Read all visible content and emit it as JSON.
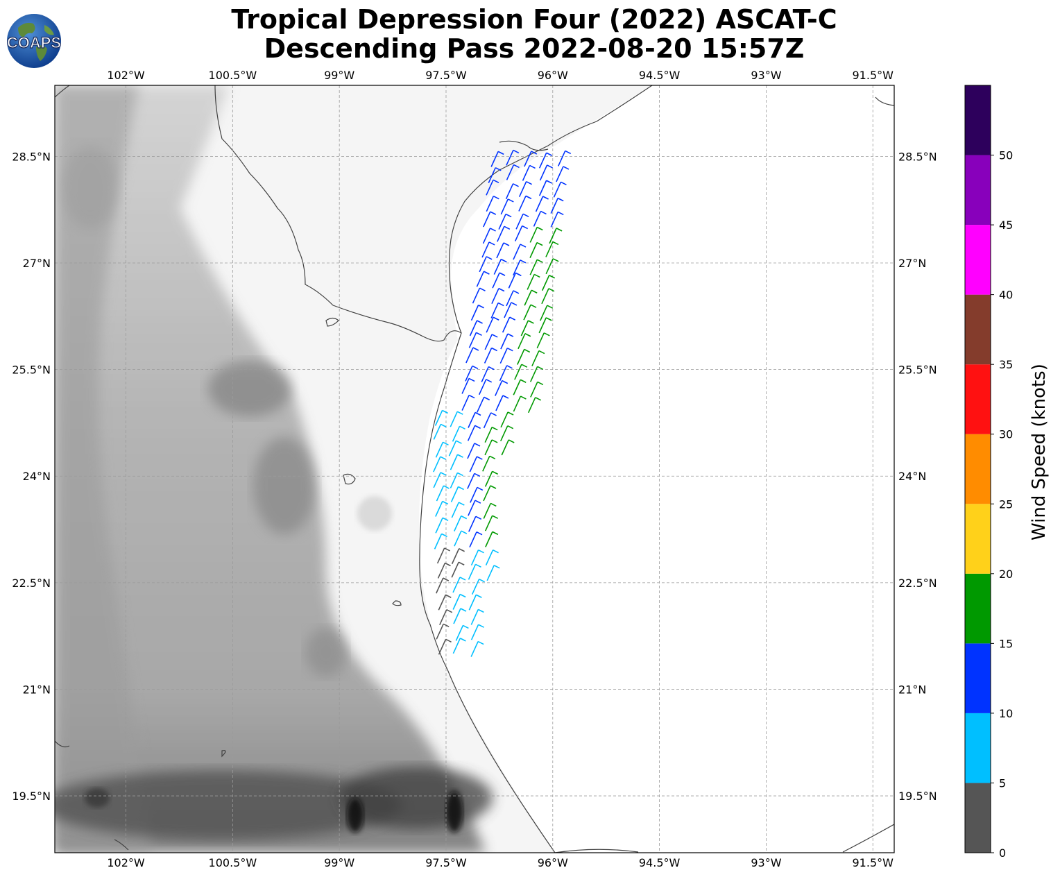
{
  "title": {
    "line1": "Tropical Depression Four (2022) ASCAT-C",
    "line2": "Descending Pass 2022-08-20 15:57Z"
  },
  "logo": {
    "text": "COAPS",
    "icon": "globe-icon"
  },
  "map": {
    "lon_range": [
      -103,
      -91.2
    ],
    "lat_range": [
      18.7,
      29.5
    ],
    "lon_ticks": [
      "102°W",
      "100.5°W",
      "99°W",
      "97.5°W",
      "96°W",
      "94.5°W",
      "93°W",
      "91.5°W"
    ],
    "lon_tick_values": [
      -102,
      -100.5,
      -99,
      -97.5,
      -96,
      -94.5,
      -93,
      -91.5
    ],
    "lat_ticks": [
      "28.5°N",
      "27°N",
      "25.5°N",
      "24°N",
      "22.5°N",
      "21°N",
      "19.5°N"
    ],
    "lat_tick_values": [
      28.5,
      27,
      25.5,
      24,
      22.5,
      21,
      19.5
    ],
    "grid": true,
    "background": "grayscale topography"
  },
  "colorbar": {
    "label": "Wind Speed (knots)",
    "ticks": [
      "0",
      "5",
      "10",
      "15",
      "20",
      "25",
      "30",
      "35",
      "40",
      "45",
      "50"
    ],
    "bins": [
      {
        "min": 0,
        "max": 5,
        "color": "#555555"
      },
      {
        "min": 5,
        "max": 10,
        "color": "#00bfff"
      },
      {
        "min": 10,
        "max": 15,
        "color": "#0033ff"
      },
      {
        "min": 15,
        "max": 20,
        "color": "#009900"
      },
      {
        "min": 20,
        "max": 25,
        "color": "#ffd11a"
      },
      {
        "min": 25,
        "max": 30,
        "color": "#ff8c00"
      },
      {
        "min": 30,
        "max": 35,
        "color": "#ff1111"
      },
      {
        "min": 35,
        "max": 40,
        "color": "#843c2c"
      },
      {
        "min": 40,
        "max": 45,
        "color": "#ff00ff"
      },
      {
        "min": 45,
        "max": 50,
        "color": "#8800bb"
      },
      {
        "min": 50,
        "max": 55,
        "color": "#2d005c"
      }
    ]
  }
}
